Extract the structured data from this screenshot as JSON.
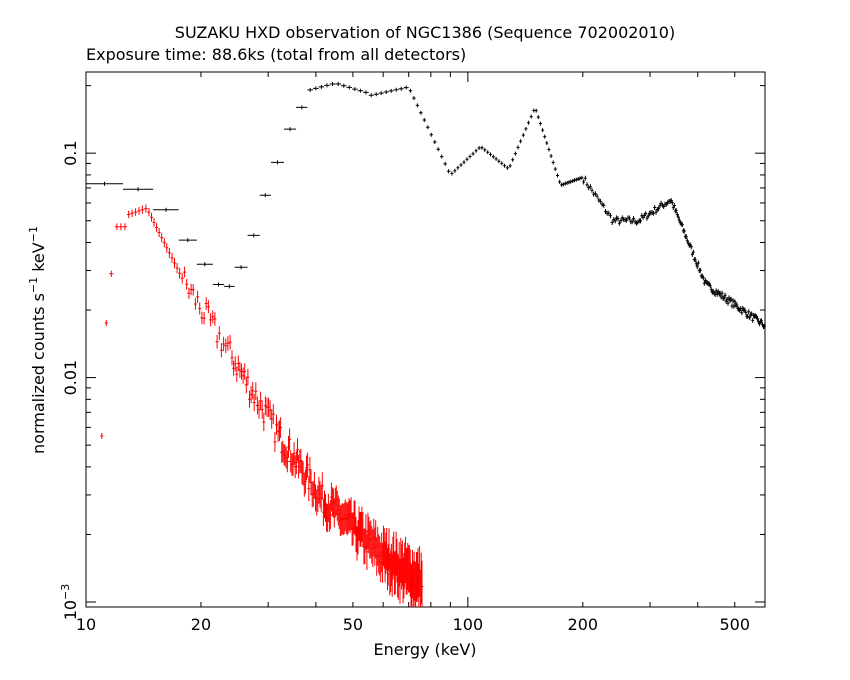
{
  "chart_data": {
    "type": "scatter",
    "title": "SUZAKU HXD observation of NGC1386 (Sequence 702002010)",
    "subtitle": "Exposure time: 88.6ks (total from all detectors)",
    "xlabel": "Energy (keV)",
    "ylabel": "normalized counts s⁻¹ keV⁻¹",
    "ylabel_parts": {
      "base": "normalized counts s",
      "exp1": "−1",
      "mid": " keV",
      "exp2": "−1"
    },
    "xscale": "log",
    "yscale": "log",
    "xlim": [
      10,
      600
    ],
    "ylim": [
      0.00095,
      0.23
    ],
    "x_ticks": [
      {
        "value": 10,
        "label": "10"
      },
      {
        "value": 20,
        "label": "20"
      },
      {
        "value": 50,
        "label": "50"
      },
      {
        "value": 100,
        "label": "100"
      },
      {
        "value": 200,
        "label": "200"
      },
      {
        "value": 500,
        "label": "500"
      }
    ],
    "y_ticks": [
      {
        "value": 0.001,
        "base": "10",
        "exp": "−3"
      },
      {
        "value": 0.01,
        "base": "0.01",
        "exp": ""
      },
      {
        "value": 0.1,
        "base": "0.1",
        "exp": ""
      }
    ],
    "colors": {
      "black_series": "#000000",
      "red_series": "#ff0000"
    },
    "series": [
      {
        "color": "#000000",
        "segments": [
          {
            "from": 10,
            "to": 12.5,
            "bins": 1,
            "y": [
              0.073,
              0.073
            ]
          },
          {
            "from": 12.5,
            "to": 15,
            "bins": 1,
            "y": [
              0.069,
              0.069
            ]
          },
          {
            "from": 15,
            "to": 17.5,
            "bins": 1,
            "y": [
              0.056,
              0.056
            ]
          },
          {
            "from": 17.5,
            "to": 19.5,
            "bins": 1,
            "y": [
              0.041,
              0.041
            ]
          },
          {
            "from": 19.5,
            "to": 21.5,
            "bins": 1,
            "y": [
              0.032,
              0.032
            ]
          },
          {
            "from": 21.5,
            "to": 23,
            "bins": 1,
            "y": [
              0.026,
              0.026
            ]
          },
          {
            "from": 23,
            "to": 24.5,
            "bins": 1,
            "y": [
              0.0255,
              0.0255
            ]
          },
          {
            "from": 24.5,
            "to": 26.5,
            "bins": 1,
            "y": [
              0.031,
              0.031
            ]
          },
          {
            "from": 26.5,
            "to": 28.5,
            "bins": 1,
            "y": [
              0.043,
              0.043
            ]
          },
          {
            "from": 28.5,
            "to": 30.5,
            "bins": 1,
            "y": [
              0.065,
              0.065
            ]
          },
          {
            "from": 30.5,
            "to": 33,
            "bins": 1,
            "y": [
              0.091,
              0.091
            ]
          },
          {
            "from": 33,
            "to": 35.5,
            "bins": 1,
            "y": [
              0.128,
              0.128
            ]
          },
          {
            "from": 35.5,
            "to": 38,
            "bins": 1,
            "y": [
              0.16,
              0.16
            ]
          },
          {
            "from": 38,
            "to": 45,
            "bins": 5,
            "y": [
              0.19,
              0.205
            ]
          },
          {
            "from": 45,
            "to": 55,
            "bins": 6,
            "y": [
              0.205,
              0.185
            ]
          },
          {
            "from": 55,
            "to": 70,
            "bins": 8,
            "y": [
              0.18,
              0.197
            ]
          },
          {
            "from": 70,
            "to": 90,
            "bins": 12,
            "y": [
              0.197,
              0.08
            ]
          },
          {
            "from": 90,
            "to": 108,
            "bins": 10,
            "y": [
              0.08,
              0.107
            ]
          },
          {
            "from": 108,
            "to": 128,
            "bins": 10,
            "y": [
              0.107,
              0.085
            ]
          },
          {
            "from": 128,
            "to": 150,
            "bins": 10,
            "y": [
              0.085,
              0.16
            ]
          },
          {
            "from": 150,
            "to": 175,
            "bins": 12,
            "y": [
              0.16,
              0.072
            ]
          },
          {
            "from": 175,
            "to": 200,
            "bins": 12,
            "y": [
              0.072,
              0.078
            ]
          },
          {
            "from": 200,
            "to": 240,
            "bins": 18,
            "y": [
              0.078,
              0.05
            ]
          },
          {
            "from": 240,
            "to": 280,
            "bins": 18,
            "y": [
              0.05,
              0.05
            ]
          },
          {
            "from": 280,
            "to": 340,
            "bins": 25,
            "y": [
              0.05,
              0.062
            ]
          },
          {
            "from": 340,
            "to": 420,
            "bins": 35,
            "y": [
              0.062,
              0.026
            ]
          },
          {
            "from": 420,
            "to": 600,
            "bins": 60,
            "y": [
              0.026,
              0.017
            ]
          }
        ]
      },
      {
        "color": "#ff0000",
        "segments": [
          {
            "from": 10.9,
            "to": 11.1,
            "bins": 1,
            "y": [
              0.0055,
              0.0055
            ]
          },
          {
            "from": 11.2,
            "to": 11.4,
            "bins": 1,
            "y": [
              0.0175,
              0.0175
            ]
          },
          {
            "from": 11.5,
            "to": 11.8,
            "bins": 1,
            "y": [
              0.029,
              0.029
            ]
          },
          {
            "from": 11.9,
            "to": 12.8,
            "bins": 3,
            "y": [
              0.047,
              0.047
            ]
          },
          {
            "from": 12.8,
            "to": 14.5,
            "bins": 6,
            "y": [
              0.053,
              0.057
            ]
          },
          {
            "from": 14.5,
            "to": 18,
            "bins": 14,
            "y": [
              0.056,
              0.027
            ]
          },
          {
            "from": 18,
            "to": 24,
            "bins": 22,
            "y": [
              0.027,
              0.0125
            ]
          },
          {
            "from": 24,
            "to": 32,
            "bins": 30,
            "y": [
              0.0125,
              0.0055
            ]
          },
          {
            "from": 32,
            "to": 42,
            "bins": 40,
            "y": [
              0.0055,
              0.0028
            ]
          },
          {
            "from": 42,
            "to": 60,
            "bins": 60,
            "y": [
              0.0028,
              0.0016
            ]
          },
          {
            "from": 60,
            "to": 76,
            "bins": 50,
            "y": [
              0.0016,
              0.0012
            ]
          }
        ]
      }
    ]
  }
}
